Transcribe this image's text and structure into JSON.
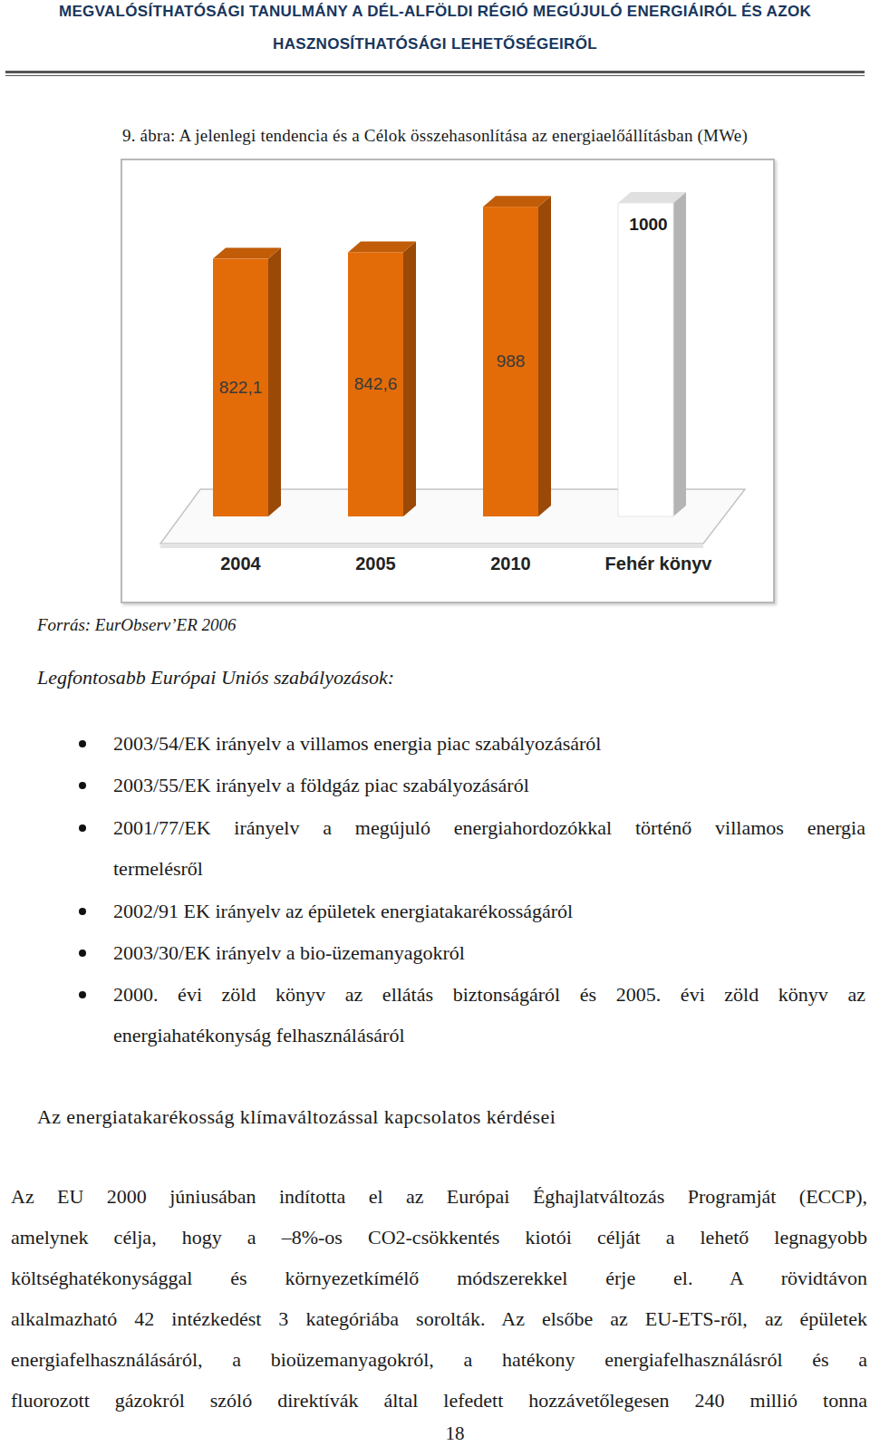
{
  "header": {
    "lines": [
      "MEGVALÓSÍTHATÓSÁGI TANULMÁNY A DÉL-ALFÖLDI RÉGIÓ MEGÚJULÓ ENERGIÁIRÓL ÉS AZOK",
      "HASZNOSÍTHATÓSÁGI LEHETŐSÉGEIRŐL"
    ]
  },
  "figure": {
    "caption": "9. ábra: A jelenlegi tendencia és a Célok összehasonlítása az energiaelőállításban (MWe)",
    "source": "Forrás: EurObserv’ER 2006"
  },
  "chart_data": {
    "type": "bar",
    "categories": [
      "2004",
      "2005",
      "2010",
      "Fehér könyv"
    ],
    "values": [
      822.1,
      842.6,
      988,
      1000
    ],
    "value_labels": [
      "822,1",
      "842,6",
      "988",
      "1000"
    ],
    "colors": [
      "#e36c09",
      "#e36c09",
      "#e36c09",
      "#ffffff"
    ],
    "ylim": [
      0,
      1000
    ],
    "data_labels": true,
    "tick_labels": "x"
  },
  "regulations": {
    "title": "Legfontosabb Európai Uniós szabályozások:",
    "items": [
      [
        "2003/54/EK irányelv a villamos energia piac szabályozásáról"
      ],
      [
        "2003/55/EK irányelv a földgáz piac szabályozásáról"
      ],
      [
        "2001/77/EK irányelv a megújuló energiahordozókkal történő villamos energia",
        "termelésről"
      ],
      [
        "2002/91 EK irányelv az épületek energiatakarékosságáról"
      ],
      [
        "2003/30/EK irányelv a bio-üzemanyagokról"
      ],
      [
        "2000. évi zöld könyv az ellátás biztonságáról és 2005. évi zöld könyv az",
        "energiahatékonyság felhasználásáról"
      ]
    ]
  },
  "section": {
    "heading": "Az energiatakarékosság klímaváltozással kapcsolatos kérdései",
    "paragraph_lines": [
      "Az EU 2000 júniusában indította el az Európai Éghajlatváltozás Programját (ECCP),",
      "amelynek célja, hogy a –8%-os CO2-csökkentés kiotói célját a lehető legnagyobb",
      "költséghatékonysággal és környezetkímélő módszerekkel érje el. A rövidtávon",
      "alkalmazható 42 intézkedést 3 kategóriába sorolták. Az elsőbe az EU-ETS-ről, az épületek",
      "energiafelhasználásáról, a bioüzemanyagokról, a hatékony energiafelhasználásról és a",
      "fluorozott gázokról szóló direktívák által lefedett hozzávetőlegesen 240 millió tonna"
    ]
  },
  "page_number": "18"
}
